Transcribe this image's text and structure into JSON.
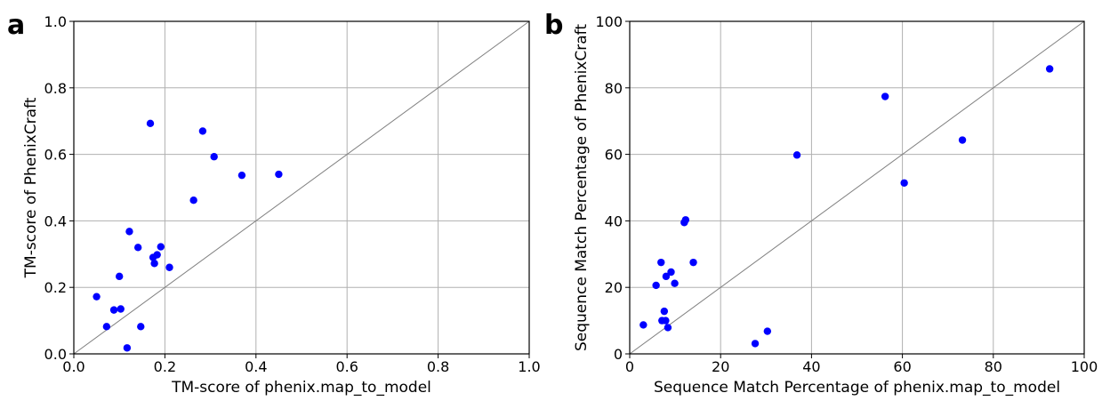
{
  "chart_data": [
    {
      "panel_label": "a",
      "type": "scatter",
      "xlabel": "TM-score of phenix.map_to_model",
      "ylabel": "TM-score of PhenixCraft",
      "xlim": [
        0.0,
        1.0
      ],
      "ylim": [
        0.0,
        1.0
      ],
      "xticks": [
        0.0,
        0.2,
        0.4,
        0.6,
        0.8,
        1.0
      ],
      "yticks": [
        0.0,
        0.2,
        0.4,
        0.6,
        0.8,
        1.0
      ],
      "xtick_labels": [
        "0.0",
        "0.2",
        "0.4",
        "0.6",
        "0.8",
        "1.0"
      ],
      "ytick_labels": [
        "0.0",
        "0.2",
        "0.4",
        "0.6",
        "0.8",
        "1.0"
      ],
      "grid": true,
      "diagonal_line": true,
      "marker_color": "#0000ff",
      "line_color": "#808080",
      "grid_color": "#b0b0b0",
      "points": [
        {
          "x": 0.05,
          "y": 0.172
        },
        {
          "x": 0.072,
          "y": 0.082
        },
        {
          "x": 0.088,
          "y": 0.132
        },
        {
          "x": 0.1,
          "y": 0.233
        },
        {
          "x": 0.103,
          "y": 0.135
        },
        {
          "x": 0.117,
          "y": 0.018
        },
        {
          "x": 0.122,
          "y": 0.368
        },
        {
          "x": 0.141,
          "y": 0.32
        },
        {
          "x": 0.147,
          "y": 0.082
        },
        {
          "x": 0.168,
          "y": 0.693
        },
        {
          "x": 0.174,
          "y": 0.29
        },
        {
          "x": 0.177,
          "y": 0.272
        },
        {
          "x": 0.183,
          "y": 0.298
        },
        {
          "x": 0.191,
          "y": 0.322
        },
        {
          "x": 0.21,
          "y": 0.26
        },
        {
          "x": 0.263,
          "y": 0.462
        },
        {
          "x": 0.283,
          "y": 0.67
        },
        {
          "x": 0.308,
          "y": 0.593
        },
        {
          "x": 0.369,
          "y": 0.537
        },
        {
          "x": 0.45,
          "y": 0.54
        }
      ]
    },
    {
      "panel_label": "b",
      "type": "scatter",
      "xlabel": "Sequence Match Percentage of phenix.map_to_model",
      "ylabel": "Sequence Match Percentage of PhenixCraft",
      "xlim": [
        0,
        100
      ],
      "ylim": [
        0,
        100
      ],
      "xticks": [
        0,
        20,
        40,
        60,
        80,
        100
      ],
      "yticks": [
        0,
        20,
        40,
        60,
        80,
        100
      ],
      "xtick_labels": [
        "0",
        "20",
        "40",
        "60",
        "80",
        "100"
      ],
      "ytick_labels": [
        "0",
        "20",
        "40",
        "60",
        "80",
        "100"
      ],
      "grid": true,
      "diagonal_line": true,
      "marker_color": "#0000ff",
      "line_color": "#808080",
      "grid_color": "#b0b0b0",
      "points": [
        {
          "x": 3.0,
          "y": 8.7
        },
        {
          "x": 5.8,
          "y": 20.6
        },
        {
          "x": 6.9,
          "y": 27.5
        },
        {
          "x": 7.1,
          "y": 10.0
        },
        {
          "x": 7.6,
          "y": 12.8
        },
        {
          "x": 7.9,
          "y": 10.0
        },
        {
          "x": 8.0,
          "y": 23.3
        },
        {
          "x": 8.4,
          "y": 7.9
        },
        {
          "x": 9.1,
          "y": 24.6
        },
        {
          "x": 9.9,
          "y": 21.2
        },
        {
          "x": 12.0,
          "y": 39.5
        },
        {
          "x": 12.3,
          "y": 40.3
        },
        {
          "x": 14.0,
          "y": 27.5
        },
        {
          "x": 27.6,
          "y": 3.1
        },
        {
          "x": 30.3,
          "y": 6.8
        },
        {
          "x": 36.8,
          "y": 59.8
        },
        {
          "x": 56.2,
          "y": 77.4
        },
        {
          "x": 60.4,
          "y": 51.4
        },
        {
          "x": 73.2,
          "y": 64.3
        },
        {
          "x": 92.4,
          "y": 85.7
        }
      ]
    }
  ]
}
